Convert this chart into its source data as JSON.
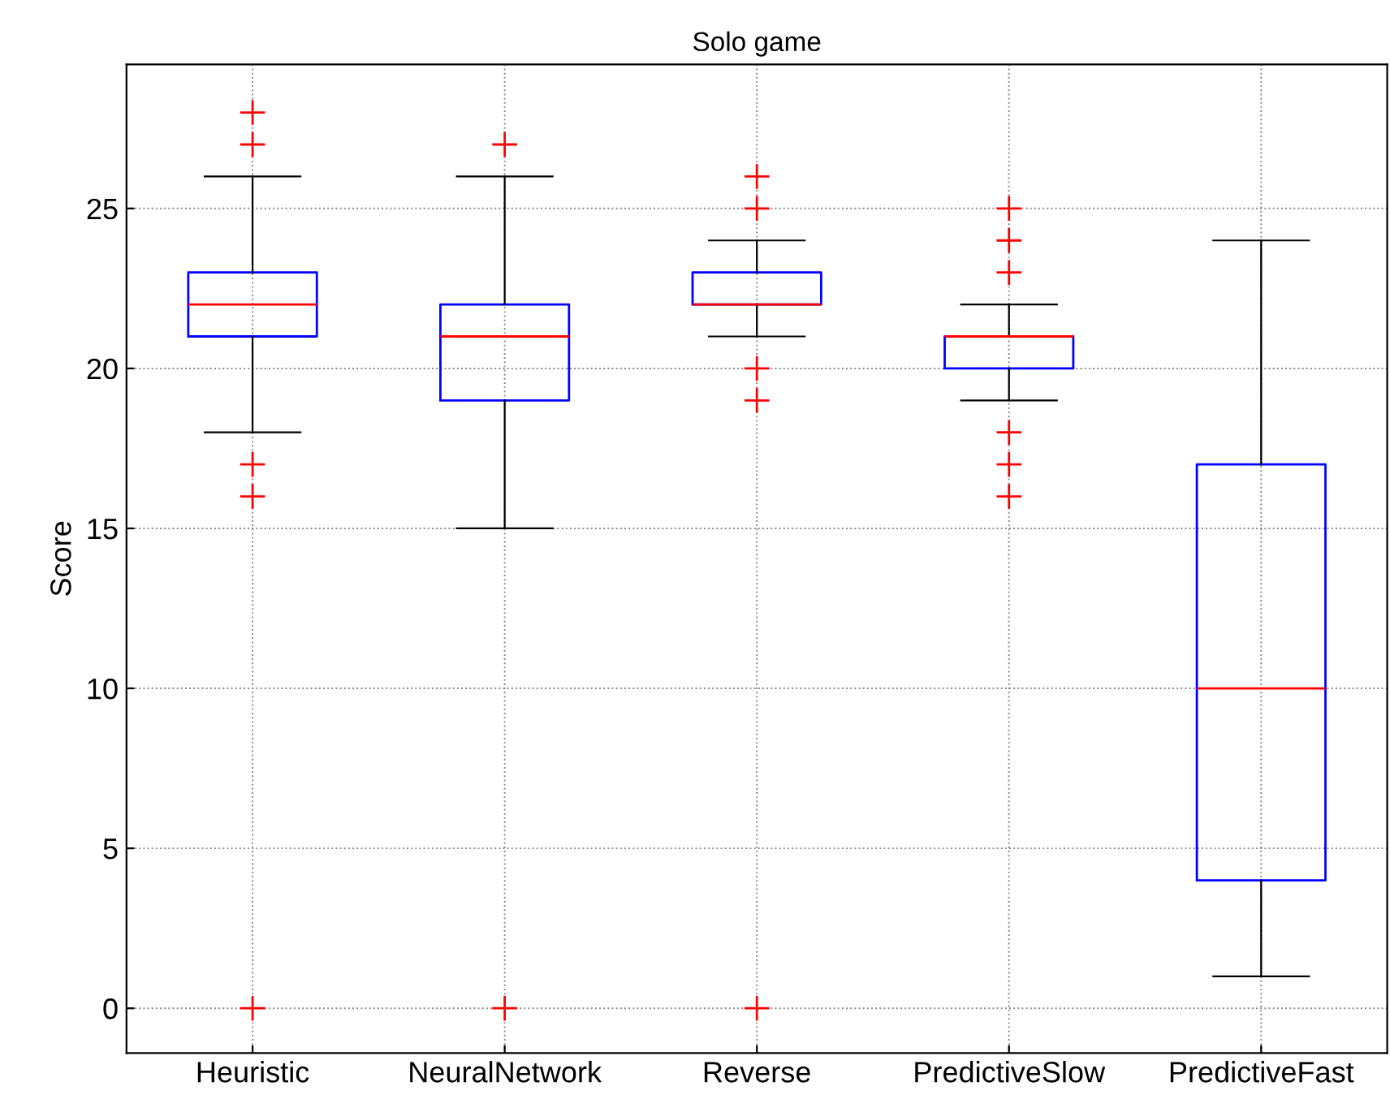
{
  "chart_data": {
    "type": "box",
    "title": "Solo game",
    "ylabel": "Score",
    "categories": [
      "Heuristic",
      "NeuralNetwork",
      "Reverse",
      "PredictiveSlow",
      "PredictiveFast"
    ],
    "series": [
      {
        "color": "#0000ff",
        "boxes": [
          {
            "low": 18,
            "q1": 21,
            "median": 22,
            "q3": 23,
            "high": 26,
            "outliers": [
              28,
              27,
              17,
              16,
              0
            ]
          },
          {
            "low": 15,
            "q1": 19,
            "median": 21,
            "q3": 22,
            "high": 26,
            "outliers": [
              27,
              0
            ]
          },
          {
            "low": 21,
            "q1": 22,
            "median": 22,
            "q3": 23,
            "high": 24,
            "outliers": [
              26,
              25,
              20,
              19,
              0
            ]
          },
          {
            "low": 19,
            "q1": 20,
            "median": 21,
            "q3": 21,
            "high": 22,
            "outliers": [
              25,
              24,
              23,
              18,
              17,
              16
            ]
          },
          {
            "low": 1,
            "q1": 4,
            "median": 10,
            "q3": 17,
            "high": 24
          }
        ]
      }
    ],
    "ylim": [
      -1.4,
      29.5
    ],
    "yticks": [
      0,
      5,
      10,
      15,
      20,
      25
    ],
    "grid": true,
    "marker": "cross"
  }
}
